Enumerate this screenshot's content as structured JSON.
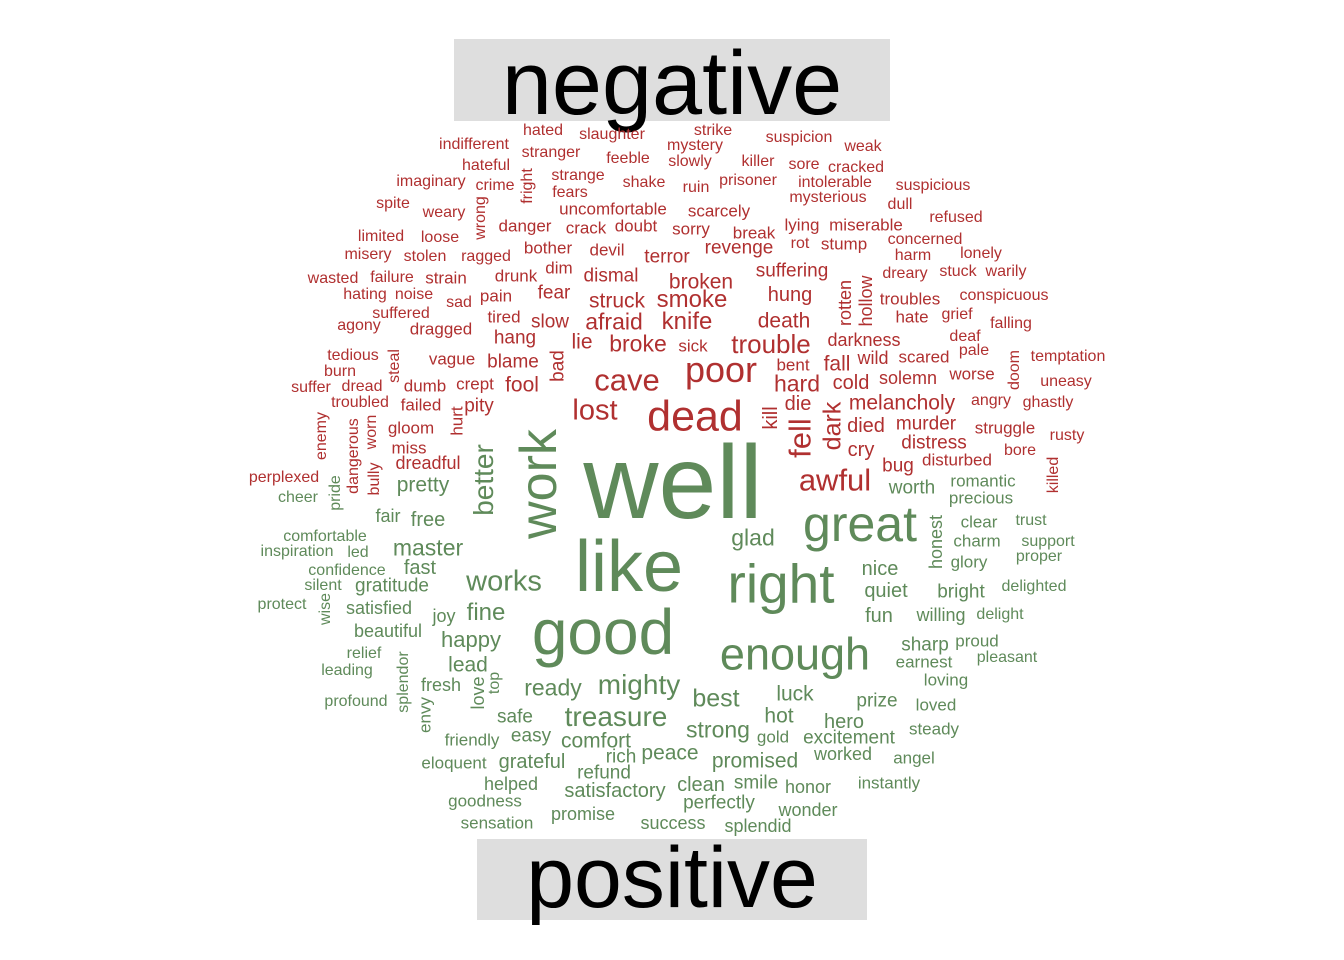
{
  "labels": {
    "negative": "negative",
    "positive": "positive"
  },
  "colors": {
    "negative": "#b03030",
    "positive": "#5f8a5a"
  },
  "words": [
    [
      "indifferent",
      "negative"
    ],
    [
      "hated",
      "negative"
    ],
    [
      "slaughter",
      "negative"
    ],
    [
      "strike",
      "negative"
    ],
    [
      "suspicion",
      "negative"
    ],
    [
      "mystery",
      "negative"
    ],
    [
      "weak",
      "negative"
    ],
    [
      "hateful",
      "negative"
    ],
    [
      "stranger",
      "negative"
    ],
    [
      "feeble",
      "negative"
    ],
    [
      "slowly",
      "negative"
    ],
    [
      "killer",
      "negative"
    ],
    [
      "sore",
      "negative"
    ],
    [
      "cracked",
      "negative"
    ],
    [
      "imaginary",
      "negative"
    ],
    [
      "crime",
      "negative"
    ],
    [
      "fright",
      "negative"
    ],
    [
      "strange",
      "negative"
    ],
    [
      "shake",
      "negative"
    ],
    [
      "ruin",
      "negative"
    ],
    [
      "prisoner",
      "negative"
    ],
    [
      "intolerable",
      "negative"
    ],
    [
      "suspicious",
      "negative"
    ],
    [
      "spite",
      "negative"
    ],
    [
      "weary",
      "negative"
    ],
    [
      "fears",
      "negative"
    ],
    [
      "uncomfortable",
      "negative"
    ],
    [
      "scarcely",
      "negative"
    ],
    [
      "mysterious",
      "negative"
    ],
    [
      "dull",
      "negative"
    ],
    [
      "wrong",
      "negative"
    ],
    [
      "danger",
      "negative"
    ],
    [
      "crack",
      "negative"
    ],
    [
      "doubt",
      "negative"
    ],
    [
      "sorry",
      "negative"
    ],
    [
      "break",
      "negative"
    ],
    [
      "lying",
      "negative"
    ],
    [
      "miserable",
      "negative"
    ],
    [
      "refused",
      "negative"
    ],
    [
      "limited",
      "negative"
    ],
    [
      "loose",
      "negative"
    ],
    [
      "bother",
      "negative"
    ],
    [
      "devil",
      "negative"
    ],
    [
      "revenge",
      "negative"
    ],
    [
      "rot",
      "negative"
    ],
    [
      "stump",
      "negative"
    ],
    [
      "concerned",
      "negative"
    ],
    [
      "misery",
      "negative"
    ],
    [
      "stolen",
      "negative"
    ],
    [
      "ragged",
      "negative"
    ],
    [
      "terror",
      "negative"
    ],
    [
      "harm",
      "negative"
    ],
    [
      "lonely",
      "negative"
    ],
    [
      "dim",
      "negative"
    ],
    [
      "dismal",
      "negative"
    ],
    [
      "suffering",
      "negative"
    ],
    [
      "stuck",
      "negative"
    ],
    [
      "warily",
      "negative"
    ],
    [
      "dreary",
      "negative"
    ],
    [
      "wasted",
      "negative"
    ],
    [
      "failure",
      "negative"
    ],
    [
      "strain",
      "negative"
    ],
    [
      "drunk",
      "negative"
    ],
    [
      "broken",
      "negative"
    ],
    [
      "hating",
      "negative"
    ],
    [
      "noise",
      "negative"
    ],
    [
      "pain",
      "negative"
    ],
    [
      "fear",
      "negative"
    ],
    [
      "struck",
      "negative"
    ],
    [
      "smoke",
      "negative"
    ],
    [
      "hung",
      "negative"
    ],
    [
      "rotten",
      "negative"
    ],
    [
      "hollow",
      "negative"
    ],
    [
      "troubles",
      "negative"
    ],
    [
      "conspicuous",
      "negative"
    ],
    [
      "sad",
      "negative"
    ],
    [
      "suffered",
      "negative"
    ],
    [
      "tired",
      "negative"
    ],
    [
      "slow",
      "negative"
    ],
    [
      "afraid",
      "negative"
    ],
    [
      "knife",
      "negative"
    ],
    [
      "death",
      "negative"
    ],
    [
      "hate",
      "negative"
    ],
    [
      "grief",
      "negative"
    ],
    [
      "falling",
      "negative"
    ],
    [
      "agony",
      "negative"
    ],
    [
      "dragged",
      "negative"
    ],
    [
      "hang",
      "negative"
    ],
    [
      "lie",
      "negative"
    ],
    [
      "broke",
      "negative"
    ],
    [
      "sick",
      "negative"
    ],
    [
      "trouble",
      "negative"
    ],
    [
      "darkness",
      "negative"
    ],
    [
      "deaf",
      "negative"
    ],
    [
      "tedious",
      "negative"
    ],
    [
      "steal",
      "negative"
    ],
    [
      "vague",
      "negative"
    ],
    [
      "blame",
      "negative"
    ],
    [
      "bad",
      "negative"
    ],
    [
      "wild",
      "negative"
    ],
    [
      "scared",
      "negative"
    ],
    [
      "pale",
      "negative"
    ],
    [
      "doom",
      "negative"
    ],
    [
      "temptation",
      "negative"
    ],
    [
      "burn",
      "negative"
    ],
    [
      "suffer",
      "negative"
    ],
    [
      "dread",
      "negative"
    ],
    [
      "dumb",
      "negative"
    ],
    [
      "crept",
      "negative"
    ],
    [
      "fool",
      "negative"
    ],
    [
      "cave",
      "negative"
    ],
    [
      "poor",
      "negative"
    ],
    [
      "bent",
      "negative"
    ],
    [
      "fall",
      "negative"
    ],
    [
      "solemn",
      "negative"
    ],
    [
      "worse",
      "negative"
    ],
    [
      "uneasy",
      "negative"
    ],
    [
      "troubled",
      "negative"
    ],
    [
      "failed",
      "negative"
    ],
    [
      "pity",
      "negative"
    ],
    [
      "lost",
      "negative"
    ],
    [
      "hard",
      "negative"
    ],
    [
      "cold",
      "negative"
    ],
    [
      "angry",
      "negative"
    ],
    [
      "ghastly",
      "negative"
    ],
    [
      "enemy",
      "negative"
    ],
    [
      "hurt",
      "negative"
    ],
    [
      "dead",
      "negative"
    ],
    [
      "kill",
      "negative"
    ],
    [
      "die",
      "negative"
    ],
    [
      "melancholy",
      "negative"
    ],
    [
      "struggle",
      "negative"
    ],
    [
      "rusty",
      "negative"
    ],
    [
      "dangerous",
      "negative"
    ],
    [
      "bully",
      "negative"
    ],
    [
      "worn",
      "negative"
    ],
    [
      "gloom",
      "negative"
    ],
    [
      "fell",
      "negative"
    ],
    [
      "dark",
      "negative"
    ],
    [
      "died",
      "negative"
    ],
    [
      "murder",
      "negative"
    ],
    [
      "bore",
      "negative"
    ],
    [
      "miss",
      "negative"
    ],
    [
      "cry",
      "negative"
    ],
    [
      "distress",
      "negative"
    ],
    [
      "killed",
      "negative"
    ],
    [
      "perplexed",
      "negative"
    ],
    [
      "dreadful",
      "negative"
    ],
    [
      "awful",
      "negative"
    ],
    [
      "bug",
      "negative"
    ],
    [
      "disturbed",
      "negative"
    ],
    [
      "cheer",
      "positive"
    ],
    [
      "pride",
      "positive"
    ],
    [
      "pretty",
      "positive"
    ],
    [
      "better",
      "positive"
    ],
    [
      "work",
      "positive"
    ],
    [
      "well",
      "positive"
    ],
    [
      "worth",
      "positive"
    ],
    [
      "romantic",
      "positive"
    ],
    [
      "precious",
      "positive"
    ],
    [
      "comfortable",
      "positive"
    ],
    [
      "fair",
      "positive"
    ],
    [
      "free",
      "positive"
    ],
    [
      "great",
      "positive"
    ],
    [
      "honest",
      "positive"
    ],
    [
      "clear",
      "positive"
    ],
    [
      "trust",
      "positive"
    ],
    [
      "inspiration",
      "positive"
    ],
    [
      "led",
      "positive"
    ],
    [
      "master",
      "positive"
    ],
    [
      "glad",
      "positive"
    ],
    [
      "charm",
      "positive"
    ],
    [
      "support",
      "positive"
    ],
    [
      "confidence",
      "positive"
    ],
    [
      "fast",
      "positive"
    ],
    [
      "like",
      "positive"
    ],
    [
      "right",
      "positive"
    ],
    [
      "nice",
      "positive"
    ],
    [
      "glory",
      "positive"
    ],
    [
      "proper",
      "positive"
    ],
    [
      "silent",
      "positive"
    ],
    [
      "gratitude",
      "positive"
    ],
    [
      "works",
      "positive"
    ],
    [
      "quiet",
      "positive"
    ],
    [
      "bright",
      "positive"
    ],
    [
      "delighted",
      "positive"
    ],
    [
      "protect",
      "positive"
    ],
    [
      "wise",
      "positive"
    ],
    [
      "satisfied",
      "positive"
    ],
    [
      "fine",
      "positive"
    ],
    [
      "fun",
      "positive"
    ],
    [
      "willing",
      "positive"
    ],
    [
      "delight",
      "positive"
    ],
    [
      "joy",
      "positive"
    ],
    [
      "good",
      "positive"
    ],
    [
      "beautiful",
      "positive"
    ],
    [
      "happy",
      "positive"
    ],
    [
      "sharp",
      "positive"
    ],
    [
      "proud",
      "positive"
    ],
    [
      "relief",
      "positive"
    ],
    [
      "enough",
      "positive"
    ],
    [
      "earnest",
      "positive"
    ],
    [
      "pleasant",
      "positive"
    ],
    [
      "leading",
      "positive"
    ],
    [
      "splendor",
      "positive"
    ],
    [
      "lead",
      "positive"
    ],
    [
      "loving",
      "positive"
    ],
    [
      "fresh",
      "positive"
    ],
    [
      "top",
      "positive"
    ],
    [
      "ready",
      "positive"
    ],
    [
      "mighty",
      "positive"
    ],
    [
      "luck",
      "positive"
    ],
    [
      "profound",
      "positive"
    ],
    [
      "love",
      "positive"
    ],
    [
      "best",
      "positive"
    ],
    [
      "prize",
      "positive"
    ],
    [
      "loved",
      "positive"
    ],
    [
      "envy",
      "positive"
    ],
    [
      "safe",
      "positive"
    ],
    [
      "treasure",
      "positive"
    ],
    [
      "hot",
      "positive"
    ],
    [
      "hero",
      "positive"
    ],
    [
      "steady",
      "positive"
    ],
    [
      "friendly",
      "positive"
    ],
    [
      "easy",
      "positive"
    ],
    [
      "comfort",
      "positive"
    ],
    [
      "strong",
      "positive"
    ],
    [
      "gold",
      "positive"
    ],
    [
      "excitement",
      "positive"
    ],
    [
      "rich",
      "positive"
    ],
    [
      "peace",
      "positive"
    ],
    [
      "worked",
      "positive"
    ],
    [
      "angel",
      "positive"
    ],
    [
      "eloquent",
      "positive"
    ],
    [
      "grateful",
      "positive"
    ],
    [
      "refund",
      "positive"
    ],
    [
      "promised",
      "positive"
    ],
    [
      "helped",
      "positive"
    ],
    [
      "clean",
      "positive"
    ],
    [
      "smile",
      "positive"
    ],
    [
      "honor",
      "positive"
    ],
    [
      "instantly",
      "positive"
    ],
    [
      "satisfactory",
      "positive"
    ],
    [
      "goodness",
      "positive"
    ],
    [
      "perfectly",
      "positive"
    ],
    [
      "wonder",
      "positive"
    ],
    [
      "promise",
      "positive"
    ],
    [
      "sensation",
      "positive"
    ],
    [
      "success",
      "positive"
    ],
    [
      "splendid",
      "positive"
    ]
  ]
}
